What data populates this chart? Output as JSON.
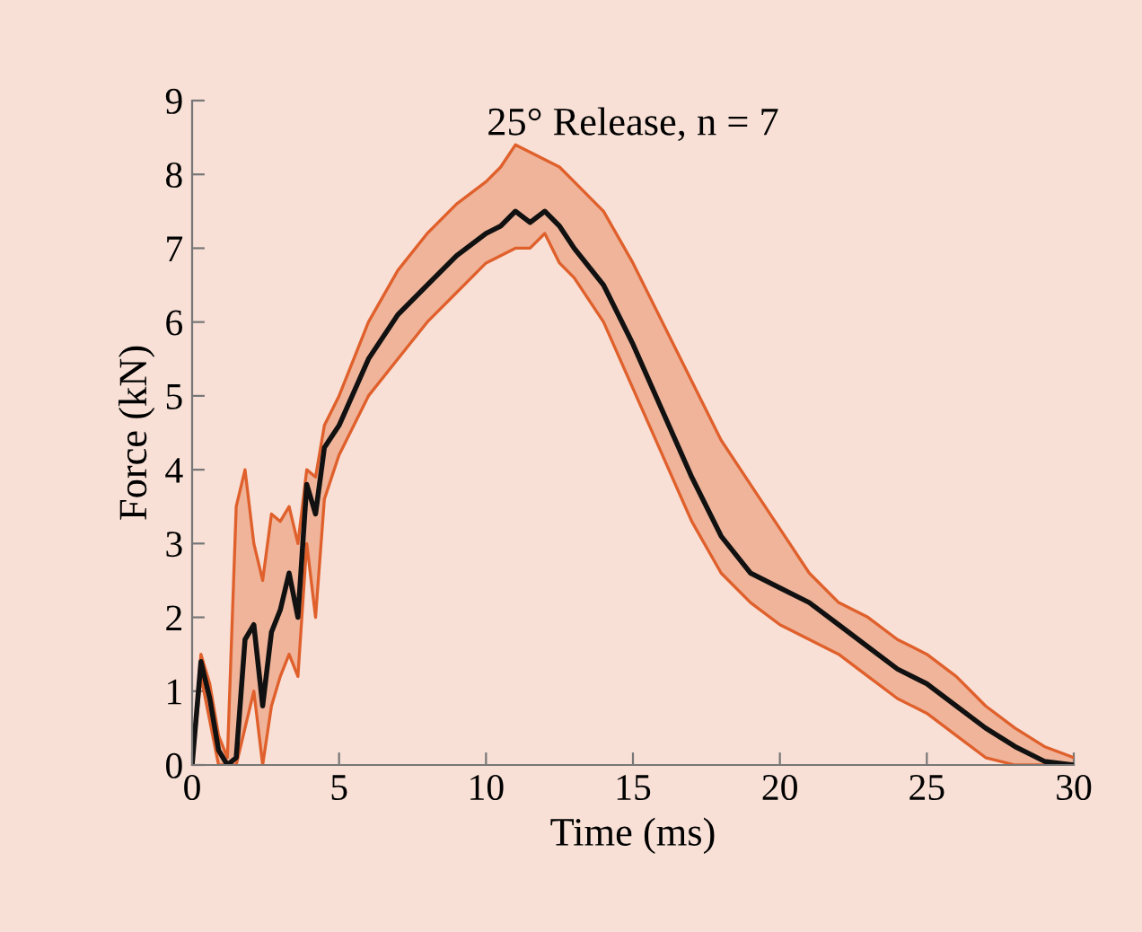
{
  "chart_data": {
    "type": "line",
    "title": "25° Release, n = 7",
    "xlabel": "Time (ms)",
    "ylabel": "Force (kN)",
    "x": [
      0,
      0.3,
      0.6,
      0.9,
      1.2,
      1.5,
      1.8,
      2.1,
      2.4,
      2.7,
      3.0,
      3.3,
      3.6,
      3.9,
      4.2,
      4.5,
      5,
      6,
      7,
      8,
      9,
      10,
      10.5,
      11,
      11.5,
      12,
      12.5,
      13,
      14,
      15,
      16,
      17,
      18,
      19,
      20,
      21,
      22,
      23,
      24,
      25,
      26,
      27,
      28,
      29,
      30
    ],
    "series": [
      {
        "color": "#e0602c",
        "values": [
          0,
          1.5,
          1.1,
          0.4,
          0.1,
          3.5,
          4.0,
          3.0,
          2.5,
          3.4,
          3.3,
          3.5,
          3.0,
          4.0,
          3.9,
          4.6,
          5.0,
          6.0,
          6.7,
          7.2,
          7.6,
          7.9,
          8.1,
          8.4,
          8.3,
          8.2,
          8.1,
          7.9,
          7.5,
          6.8,
          6.0,
          5.2,
          4.4,
          3.8,
          3.2,
          2.6,
          2.2,
          2.0,
          1.7,
          1.5,
          1.2,
          0.8,
          0.5,
          0.25,
          0.1
        ]
      },
      {
        "color": "#e0602c",
        "values": [
          0,
          1.2,
          0.6,
          0,
          0,
          0,
          0.5,
          1.0,
          0,
          0.8,
          1.2,
          1.5,
          1.2,
          3.0,
          2.0,
          3.6,
          4.2,
          5.0,
          5.5,
          6.0,
          6.4,
          6.8,
          6.9,
          7.0,
          7.0,
          7.2,
          6.8,
          6.6,
          6.0,
          5.1,
          4.2,
          3.3,
          2.6,
          2.2,
          1.9,
          1.7,
          1.5,
          1.2,
          0.9,
          0.7,
          0.4,
          0.1,
          0,
          0,
          0
        ]
      },
      {
        "color": "#111111",
        "values": [
          0,
          1.4,
          0.9,
          0.2,
          0.0,
          0.1,
          1.7,
          1.9,
          0.8,
          1.8,
          2.1,
          2.6,
          2.0,
          3.8,
          3.4,
          4.3,
          4.6,
          5.5,
          6.1,
          6.5,
          6.9,
          7.2,
          7.3,
          7.5,
          7.35,
          7.5,
          7.3,
          7.0,
          6.5,
          5.7,
          4.8,
          3.9,
          3.1,
          2.6,
          2.4,
          2.2,
          1.9,
          1.6,
          1.3,
          1.1,
          0.8,
          0.5,
          0.25,
          0.05,
          0
        ],
        "upper": [
          0,
          1.5,
          1.1,
          0.4,
          0.1,
          3.5,
          4.0,
          3.0,
          2.5,
          3.4,
          3.3,
          3.5,
          3.0,
          4.0,
          3.9,
          4.6,
          5.0,
          6.0,
          6.7,
          7.2,
          7.6,
          7.9,
          8.1,
          8.4,
          8.3,
          8.2,
          8.1,
          7.9,
          7.5,
          6.8,
          6.0,
          5.2,
          4.4,
          3.8,
          3.2,
          2.6,
          2.2,
          2.0,
          1.7,
          1.5,
          1.2,
          0.8,
          0.5,
          0.25,
          0.1
        ],
        "lower": [
          0,
          1.2,
          0.6,
          0,
          0,
          0,
          0.5,
          1.0,
          0,
          0.8,
          1.2,
          1.5,
          1.2,
          3.0,
          2.0,
          3.6,
          4.2,
          5.0,
          5.5,
          6.0,
          6.4,
          6.8,
          6.9,
          7.0,
          7.0,
          7.2,
          6.8,
          6.6,
          6.0,
          5.1,
          4.2,
          3.3,
          2.6,
          2.2,
          1.9,
          1.7,
          1.5,
          1.2,
          0.9,
          0.7,
          0.4,
          0.1,
          0,
          0,
          0
        ]
      }
    ],
    "xlim": [
      0,
      30
    ],
    "ylim": [
      0,
      9
    ],
    "xticks": [
      0,
      5,
      10,
      15,
      20,
      25,
      30
    ],
    "yticks": [
      0,
      1,
      2,
      3,
      4,
      5,
      6,
      7,
      8,
      9
    ],
    "grid": false,
    "legend": false,
    "marker": "none",
    "line_style": "solid"
  }
}
